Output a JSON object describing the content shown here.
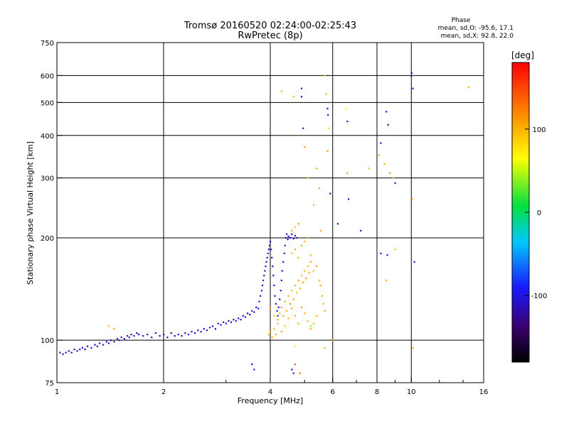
{
  "chart_data": {
    "type": "scatter",
    "title": "Tromsø 20160520 02:24:00-02:25:43",
    "subtitle": "RwPretec (8p)",
    "xlabel": "Frequency [MHz]",
    "ylabel": "Stationary phase Virtual Height [km]",
    "x_scale": "log",
    "y_scale": "log",
    "xlim": [
      1,
      16
    ],
    "ylim": [
      75,
      750
    ],
    "x_ticks": [
      1,
      2,
      4,
      6,
      8,
      10,
      16
    ],
    "x_tick_labels": [
      "1",
      "2",
      "4",
      "6",
      "8",
      "10",
      "16"
    ],
    "y_ticks": [
      75,
      100,
      200,
      300,
      400,
      500,
      600,
      750
    ],
    "y_tick_labels": [
      "75",
      "100",
      "200",
      "300",
      "400",
      "500",
      "600",
      "750"
    ],
    "grid": true,
    "phase_box": {
      "title": "Phase",
      "line_o": "mean, sd,O: -95.6, 17.1",
      "line_x": "mean, sd,X:  92.8, 22.0"
    },
    "colorbar": {
      "label": "[deg]",
      "range": [
        -180,
        180
      ],
      "ticks": [
        100,
        0,
        -100
      ],
      "tick_labels": [
        "100",
        "0",
        "-100"
      ],
      "colormap": "rainbow"
    },
    "series": [
      {
        "name": "O-mode",
        "points": [
          [
            1.02,
            92,
            -110
          ],
          [
            1.04,
            91,
            -115
          ],
          [
            1.06,
            92,
            -108
          ],
          [
            1.08,
            93,
            -112
          ],
          [
            1.1,
            92,
            -105
          ],
          [
            1.12,
            94,
            -110
          ],
          [
            1.14,
            93,
            -118
          ],
          [
            1.16,
            94,
            -100
          ],
          [
            1.18,
            95,
            -105
          ],
          [
            1.2,
            94,
            -112
          ],
          [
            1.22,
            96,
            -108
          ],
          [
            1.25,
            95,
            -100
          ],
          [
            1.28,
            97,
            -115
          ],
          [
            1.3,
            96,
            -110
          ],
          [
            1.32,
            98,
            -95
          ],
          [
            1.35,
            97,
            -102
          ],
          [
            1.38,
            99,
            -110
          ],
          [
            1.4,
            98,
            -108
          ],
          [
            1.42,
            100,
            -112
          ],
          [
            1.45,
            99,
            -100
          ],
          [
            1.48,
            101,
            -95
          ],
          [
            1.5,
            100,
            -110
          ],
          [
            1.52,
            102,
            -105
          ],
          [
            1.55,
            101,
            -118
          ],
          [
            1.58,
            103,
            -100
          ],
          [
            1.6,
            102,
            -108
          ],
          [
            1.62,
            104,
            -112
          ],
          [
            1.65,
            103,
            -95
          ],
          [
            1.68,
            105,
            -110
          ],
          [
            1.7,
            104,
            -100
          ],
          [
            1.75,
            103,
            -115
          ],
          [
            1.8,
            104,
            -105
          ],
          [
            1.85,
            102,
            -110
          ],
          [
            1.9,
            105,
            -100
          ],
          [
            1.95,
            103,
            -112
          ],
          [
            2.0,
            104,
            -108
          ],
          [
            2.05,
            102,
            -95
          ],
          [
            2.1,
            105,
            -110
          ],
          [
            2.15,
            103,
            -120
          ],
          [
            2.2,
            104,
            -100
          ],
          [
            2.25,
            103,
            -110
          ],
          [
            2.3,
            105,
            -105
          ],
          [
            2.35,
            104,
            -98
          ],
          [
            2.4,
            106,
            -110
          ],
          [
            2.45,
            105,
            -112
          ],
          [
            2.5,
            107,
            -100
          ],
          [
            2.55,
            106,
            -95
          ],
          [
            2.6,
            108,
            -110
          ],
          [
            2.65,
            107,
            -108
          ],
          [
            2.7,
            109,
            -100
          ],
          [
            2.75,
            110,
            -112
          ],
          [
            2.8,
            108,
            -105
          ],
          [
            2.85,
            112,
            -110
          ],
          [
            2.9,
            111,
            -95
          ],
          [
            2.95,
            113,
            -108
          ],
          [
            3.0,
            112,
            -100
          ],
          [
            3.05,
            114,
            -112
          ],
          [
            3.1,
            113,
            -105
          ],
          [
            3.15,
            115,
            -110
          ],
          [
            3.2,
            114,
            -98
          ],
          [
            3.25,
            116,
            -110
          ],
          [
            3.3,
            115,
            -105
          ],
          [
            3.35,
            118,
            -112
          ],
          [
            3.4,
            117,
            -100
          ],
          [
            3.45,
            120,
            -108
          ],
          [
            3.5,
            119,
            -110
          ],
          [
            3.55,
            122,
            -95
          ],
          [
            3.6,
            121,
            -112
          ],
          [
            3.65,
            125,
            -105
          ],
          [
            3.7,
            124,
            -110
          ],
          [
            3.72,
            130,
            -100
          ],
          [
            3.75,
            135,
            -112
          ],
          [
            3.78,
            140,
            -105
          ],
          [
            3.8,
            145,
            -110
          ],
          [
            3.82,
            150,
            -98
          ],
          [
            3.84,
            155,
            -108
          ],
          [
            3.86,
            160,
            -112
          ],
          [
            3.88,
            165,
            -100
          ],
          [
            3.9,
            170,
            -110
          ],
          [
            3.92,
            175,
            -105
          ],
          [
            3.94,
            180,
            -95
          ],
          [
            3.96,
            185,
            -110
          ],
          [
            3.98,
            190,
            -112
          ],
          [
            4.0,
            195,
            -105
          ],
          [
            4.02,
            185,
            -110
          ],
          [
            4.04,
            175,
            -100
          ],
          [
            4.06,
            165,
            -112
          ],
          [
            4.08,
            155,
            -108
          ],
          [
            4.1,
            145,
            -95
          ],
          [
            4.12,
            135,
            -110
          ],
          [
            4.15,
            128,
            -105
          ],
          [
            4.18,
            122,
            -112
          ],
          [
            4.2,
            118,
            -100
          ],
          [
            4.22,
            125,
            -110
          ],
          [
            4.25,
            132,
            -108
          ],
          [
            4.28,
            140,
            -95
          ],
          [
            4.3,
            150,
            -112
          ],
          [
            4.32,
            160,
            -105
          ],
          [
            4.35,
            170,
            -110
          ],
          [
            4.38,
            180,
            -100
          ],
          [
            4.4,
            190,
            -108
          ],
          [
            4.42,
            200,
            -112
          ],
          [
            4.45,
            205,
            -105
          ],
          [
            4.48,
            198,
            -110
          ],
          [
            4.5,
            202,
            -100
          ],
          [
            4.55,
            200,
            -112
          ],
          [
            4.6,
            205,
            -108
          ],
          [
            4.65,
            199,
            -95
          ],
          [
            4.7,
            203,
            -110
          ],
          [
            4.75,
            200,
            -105
          ],
          [
            3.55,
            85,
            -110
          ],
          [
            3.6,
            82,
            -108
          ],
          [
            4.6,
            82,
            -112
          ],
          [
            4.65,
            80,
            -105
          ],
          [
            4.9,
            550,
            -105
          ],
          [
            4.9,
            520,
            -112
          ],
          [
            4.95,
            420,
            -110
          ],
          [
            5.8,
            480,
            -100
          ],
          [
            5.82,
            460,
            -108
          ],
          [
            5.9,
            270,
            -112
          ],
          [
            6.2,
            220,
            -105
          ],
          [
            6.6,
            440,
            -110
          ],
          [
            6.65,
            260,
            -108
          ],
          [
            7.2,
            210,
            -112
          ],
          [
            8.5,
            470,
            -105
          ],
          [
            8.6,
            430,
            -115
          ],
          [
            8.2,
            180,
            -108
          ],
          [
            8.55,
            178,
            -100
          ],
          [
            9.0,
            290,
            -112
          ],
          [
            10.0,
            598,
            -110
          ],
          [
            10.02,
            610,
            -120
          ],
          [
            10.1,
            550,
            -115
          ],
          [
            10.2,
            170,
            -108
          ],
          [
            8.2,
            380,
            -100
          ]
        ]
      },
      {
        "name": "X-mode",
        "points": [
          [
            1.4,
            110,
            100
          ],
          [
            1.45,
            108,
            105
          ],
          [
            3.95,
            104,
            95
          ],
          [
            4.0,
            106,
            110
          ],
          [
            4.05,
            102,
            100
          ],
          [
            4.1,
            108,
            98
          ],
          [
            4.15,
            104,
            105
          ],
          [
            4.2,
            115,
            100
          ],
          [
            4.25,
            120,
            95
          ],
          [
            4.3,
            125,
            110
          ],
          [
            4.35,
            118,
            100
          ],
          [
            4.4,
            130,
            105
          ],
          [
            4.45,
            122,
            98
          ],
          [
            4.5,
            135,
            100
          ],
          [
            4.55,
            128,
            110
          ],
          [
            4.6,
            140,
            95
          ],
          [
            4.65,
            132,
            105
          ],
          [
            4.7,
            145,
            100
          ],
          [
            4.75,
            138,
            98
          ],
          [
            4.8,
            150,
            110
          ],
          [
            4.85,
            142,
            100
          ],
          [
            4.9,
            155,
            95
          ],
          [
            4.95,
            148,
            105
          ],
          [
            5.0,
            160,
            100
          ],
          [
            5.05,
            152,
            110
          ],
          [
            5.1,
            165,
            98
          ],
          [
            5.15,
            158,
            100
          ],
          [
            5.2,
            170,
            105
          ],
          [
            4.6,
            180,
            95
          ],
          [
            4.7,
            185,
            110
          ],
          [
            4.8,
            175,
            100
          ],
          [
            4.9,
            190,
            105
          ],
          [
            5.0,
            195,
            98
          ],
          [
            5.1,
            200,
            100
          ],
          [
            4.6,
            210,
            110
          ],
          [
            4.7,
            215,
            95
          ],
          [
            4.8,
            220,
            105
          ],
          [
            5.2,
            178,
            100
          ],
          [
            5.3,
            160,
            98
          ],
          [
            5.4,
            165,
            110
          ],
          [
            5.5,
            150,
            100
          ],
          [
            5.55,
            145,
            95
          ],
          [
            5.6,
            135,
            105
          ],
          [
            5.65,
            128,
            100
          ],
          [
            5.7,
            122,
            110
          ],
          [
            5.4,
            118,
            98
          ],
          [
            5.3,
            112,
            100
          ],
          [
            5.2,
            108,
            105
          ],
          [
            5.1,
            114,
            95
          ],
          [
            5.0,
            120,
            100
          ],
          [
            4.9,
            125,
            110
          ],
          [
            4.8,
            112,
            98
          ],
          [
            4.7,
            118,
            100
          ],
          [
            4.6,
            124,
            105
          ],
          [
            4.5,
            116,
            95
          ],
          [
            4.4,
            110,
            100
          ],
          [
            4.3,
            106,
            110
          ],
          [
            4.2,
            112,
            98
          ],
          [
            4.1,
            118,
            100
          ],
          [
            4.0,
            124,
            105
          ],
          [
            4.3,
            540,
            100
          ],
          [
            4.65,
            520,
            95
          ],
          [
            5.0,
            370,
            110
          ],
          [
            5.1,
            300,
            100
          ],
          [
            5.3,
            250,
            105
          ],
          [
            5.4,
            320,
            98
          ],
          [
            5.5,
            280,
            110
          ],
          [
            5.55,
            210,
            100
          ],
          [
            5.7,
            600,
            95
          ],
          [
            5.75,
            530,
            100
          ],
          [
            5.8,
            360,
            105
          ],
          [
            5.85,
            420,
            80
          ],
          [
            6.55,
            480,
            60
          ],
          [
            6.6,
            310,
            110
          ],
          [
            7.6,
            320,
            100
          ],
          [
            8.1,
            350,
            105
          ],
          [
            8.4,
            330,
            98
          ],
          [
            8.7,
            310,
            110
          ],
          [
            8.9,
            300,
            100
          ],
          [
            14.5,
            555,
            100
          ],
          [
            10.05,
            260,
            110
          ],
          [
            10.1,
            95,
            105
          ],
          [
            8.5,
            150,
            100
          ],
          [
            9.0,
            185,
            95
          ],
          [
            6.0,
            100,
            110
          ],
          [
            5.7,
            95,
            100
          ],
          [
            4.7,
            85,
            140
          ],
          [
            4.85,
            80,
            130
          ],
          [
            4.7,
            96,
            60
          ],
          [
            5.2,
            110,
            40
          ]
        ]
      }
    ]
  }
}
